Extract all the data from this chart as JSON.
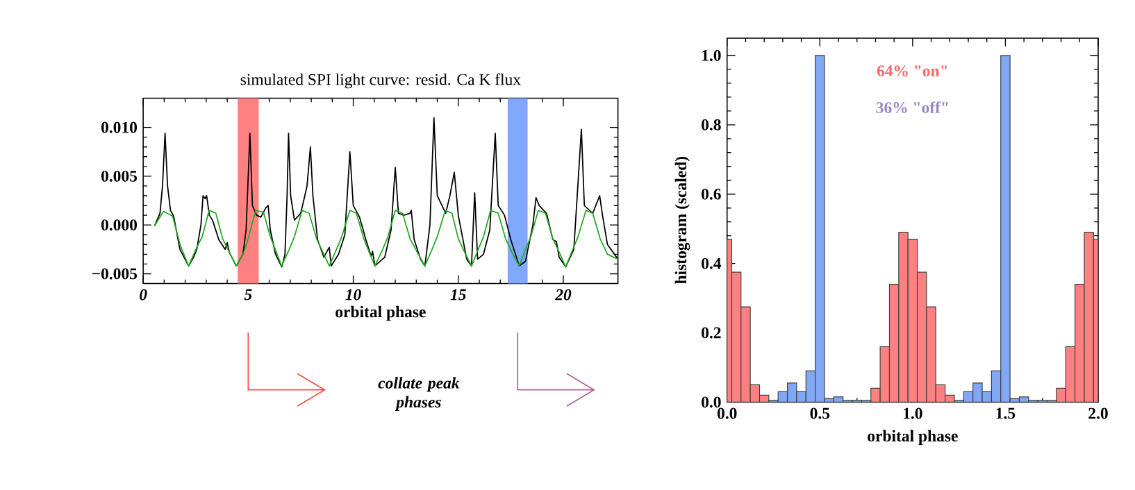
{
  "chart_data": [
    {
      "type": "line",
      "title": "simulated SPI light curve: resid. Ca K flux",
      "xlabel": "orbital phase",
      "xlim": [
        0,
        22.6
      ],
      "ylim": [
        -0.006,
        0.013
      ],
      "xticks": [
        0,
        5,
        10,
        15,
        20
      ],
      "yticks": [
        {
          "value": -0.005,
          "label": "−0.005"
        },
        {
          "value": 0,
          "label": "0.000"
        },
        {
          "value": 0.005,
          "label": "0.005"
        },
        {
          "value": 0.01,
          "label": "0.010"
        }
      ],
      "bands": [
        {
          "axis": "x",
          "from": 4.5,
          "to": 5.5,
          "color": "#ff8080"
        },
        {
          "axis": "x",
          "from": 17.35,
          "to": 18.3,
          "color": "#80a8ff"
        }
      ],
      "annotations": [
        "collate peak phases"
      ],
      "series": [
        {
          "color": "#000000",
          "x": [
            0.54,
            0.8,
            0.92,
            1.04,
            1.16,
            1.3,
            1.45,
            1.75,
            2.16,
            2.4,
            2.55,
            2.75,
            2.85,
            2.95,
            3.02,
            3.15,
            3.3,
            3.6,
            3.9,
            4.0,
            4.1,
            4.43,
            4.75,
            4.9,
            5.08,
            5.2,
            5.4,
            5.6,
            5.85,
            5.95,
            6.05,
            6.3,
            6.6,
            6.75,
            6.85,
            6.92,
            7.02,
            7.2,
            7.5,
            7.8,
            7.96,
            8.08,
            8.3,
            8.6,
            8.8,
            8.86,
            8.95,
            9.3,
            9.6,
            9.84,
            10.0,
            10.3,
            10.6,
            10.85,
            10.92,
            11.03,
            11.5,
            11.8,
            12.0,
            12.15,
            12.4,
            12.7,
            12.76,
            12.9,
            13.2,
            13.41,
            13.65,
            13.84,
            14.0,
            14.4,
            14.6,
            14.81,
            15.0,
            15.4,
            15.63,
            15.78,
            15.92,
            16.2,
            16.5,
            16.76,
            16.9,
            17.2,
            17.5,
            17.9,
            18.2,
            18.55,
            18.7,
            18.85,
            19.2,
            19.5,
            19.67,
            19.8,
            20.11,
            20.5,
            20.86,
            21.0,
            21.4,
            21.73,
            21.85,
            22.1,
            22.6
          ],
          "values": [
            -0.0001,
            0.0012,
            0.004,
            0.0094,
            0.004,
            0.0015,
            0.0009,
            -0.0025,
            -0.0042,
            -0.0033,
            -0.0025,
            0.0,
            0.003,
            0.0027,
            0.003,
            0.001,
            0.0005,
            -0.0015,
            -0.0025,
            -0.0018,
            -0.0028,
            -0.0042,
            -0.003,
            -0.0005,
            0.0094,
            0.002,
            0.001,
            0.0008,
            0.0018,
            0.002,
            -0.0005,
            -0.003,
            -0.0043,
            -0.003,
            0.003,
            0.0094,
            0.003,
            0.0005,
            0.0012,
            0.004,
            0.008,
            0.003,
            -0.0015,
            -0.0033,
            -0.0025,
            -0.0023,
            -0.0042,
            -0.003,
            -0.001,
            0.0075,
            0.002,
            0.0008,
            -0.0015,
            -0.0032,
            -0.0027,
            -0.0042,
            -0.0033,
            -0.0005,
            0.0059,
            0.0012,
            0.001,
            0.0012,
            0.0015,
            -0.0015,
            -0.0035,
            -0.0042,
            0.0,
            0.011,
            0.003,
            0.0012,
            0.003,
            0.0054,
            0.001,
            -0.0035,
            -0.0042,
            0.0033,
            -0.0035,
            -0.003,
            -0.0005,
            0.0094,
            0.002,
            0.001,
            -0.0015,
            -0.0042,
            -0.0037,
            0.0,
            0.0028,
            0.002,
            0.0012,
            -0.0015,
            -0.0017,
            -0.0033,
            -0.0043,
            -0.0025,
            0.0098,
            0.002,
            0.0012,
            0.003,
            0.0012,
            -0.002,
            -0.0035
          ]
        },
        {
          "color": "#22aa22",
          "x": [
            0.54,
            0.97,
            1.4,
            1.77,
            2.16,
            2.55,
            2.81,
            3.14,
            3.46,
            3.78,
            4.15,
            4.43,
            4.76,
            4.97,
            5.36,
            5.73,
            6.05,
            6.38,
            6.59,
            6.95,
            7.2,
            7.57,
            7.9,
            8.25,
            8.6,
            8.86,
            9.2,
            9.45,
            9.84,
            10.15,
            10.5,
            10.8,
            11.03,
            11.4,
            11.65,
            12.0,
            12.35,
            12.7,
            13.1,
            13.41,
            13.75,
            14.0,
            14.38,
            14.7,
            15.0,
            15.35,
            15.63,
            15.95,
            16.2,
            16.54,
            16.9,
            17.25,
            17.6,
            17.9,
            18.2,
            18.45,
            18.81,
            19.15,
            19.5,
            19.85,
            20.11,
            20.45,
            20.7,
            21.08,
            21.4,
            21.75,
            22.1,
            22.6
          ],
          "values": [
            -0.0001,
            0.0014,
            0.0009,
            -0.0021,
            -0.0042,
            -0.0023,
            -0.0012,
            0.0015,
            0.0012,
            -0.0014,
            -0.003,
            -0.0042,
            -0.003,
            -0.0016,
            0.0015,
            0.0013,
            -0.0012,
            -0.003,
            -0.0042,
            -0.0025,
            -0.0012,
            0.0015,
            0.0012,
            -0.0014,
            -0.003,
            -0.0042,
            -0.0025,
            -0.0012,
            0.0015,
            0.0012,
            -0.0014,
            -0.003,
            -0.0042,
            -0.0025,
            -0.0012,
            0.0015,
            0.0012,
            -0.0014,
            -0.003,
            -0.0042,
            -0.0025,
            -0.0012,
            0.0015,
            0.0012,
            -0.0014,
            -0.003,
            -0.0042,
            -0.0025,
            -0.0012,
            0.0015,
            0.0012,
            -0.0014,
            -0.003,
            -0.0042,
            -0.0025,
            -0.0012,
            0.0015,
            0.0012,
            -0.0014,
            -0.003,
            -0.0043,
            -0.0025,
            -0.0012,
            0.0015,
            0.0012,
            -0.0014,
            -0.003,
            -0.0035
          ]
        }
      ]
    },
    {
      "type": "histogram",
      "xlabel": "orbital phase",
      "ylabel": "histogram (scaled)",
      "xlim": [
        0,
        2
      ],
      "ylim": [
        0,
        1.05
      ],
      "xticks": [
        {
          "value": 0,
          "label": "0.0"
        },
        {
          "value": 0.5,
          "label": "0.5"
        },
        {
          "value": 1,
          "label": "1.0"
        },
        {
          "value": 1.5,
          "label": "1.5"
        },
        {
          "value": 2,
          "label": "2.0"
        }
      ],
      "yticks": [
        {
          "value": 0,
          "label": "0.0"
        },
        {
          "value": 0.2,
          "label": "0.2"
        },
        {
          "value": 0.4,
          "label": "0.4"
        },
        {
          "value": 0.6,
          "label": "0.6"
        },
        {
          "value": 0.8,
          "label": "0.8"
        },
        {
          "value": 1,
          "label": "1.0"
        }
      ],
      "annotations": [
        "64% \"on\"",
        "36% \"off\""
      ],
      "bins": [
        0,
        0.025,
        0.075,
        0.125,
        0.175,
        0.225,
        0.275,
        0.325,
        0.375,
        0.425,
        0.475,
        0.525,
        0.575,
        0.625,
        0.675,
        0.725,
        0.775,
        0.825,
        0.875,
        0.925,
        0.975,
        1.025,
        1.075,
        1.125,
        1.175,
        1.225,
        1.275,
        1.325,
        1.375,
        1.425,
        1.475,
        1.525,
        1.575,
        1.625,
        1.675,
        1.725,
        1.775,
        1.825,
        1.875,
        1.925,
        1.975,
        2.0
      ],
      "series": [
        {
          "color": "#ff8080",
          "values": [
            0.47,
            0.375,
            0.275,
            0.05,
            0.02,
            null,
            null,
            null,
            null,
            null,
            null,
            null,
            null,
            null,
            null,
            null,
            0.04,
            0.16,
            0.34,
            0.49,
            0.47,
            0.375,
            0.275,
            0.05,
            0.02,
            null,
            null,
            null,
            null,
            null,
            null,
            null,
            null,
            null,
            null,
            null,
            0.04,
            0.16,
            0.34,
            0.49,
            0.47
          ]
        },
        {
          "color": "#80a8f5",
          "values": [
            null,
            null,
            null,
            null,
            null,
            0.005,
            0.03,
            0.055,
            0.03,
            0.09,
            1.0,
            0.01,
            0.015,
            0.005,
            0.005,
            0.005,
            null,
            null,
            null,
            null,
            null,
            null,
            null,
            null,
            null,
            0.005,
            0.03,
            0.055,
            0.03,
            0.09,
            1.0,
            0.01,
            0.015,
            0.005,
            0.005,
            0.005,
            null,
            null,
            null,
            null,
            null
          ]
        }
      ]
    }
  ]
}
